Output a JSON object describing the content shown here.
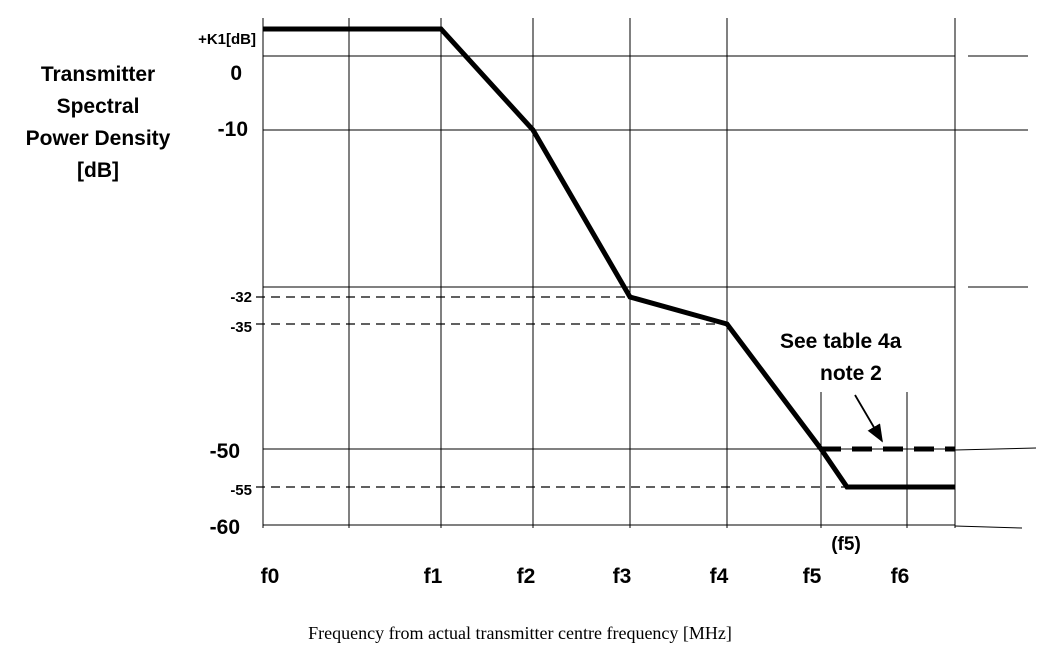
{
  "chart_data": {
    "type": "line",
    "ylabel_lines": [
      "Transmitter",
      "Spectral",
      "Power Density",
      "[dB]"
    ],
    "xlabel": "Frequency from actual transmitter centre frequency [MHz]",
    "x_ticks": [
      {
        "key": "f0",
        "label": "f0"
      },
      {
        "key": "f1",
        "label": "f1"
      },
      {
        "key": "f2",
        "label": "f2"
      },
      {
        "key": "f3",
        "label": "f3"
      },
      {
        "key": "f4",
        "label": "f4"
      },
      {
        "key": "f5",
        "label": "f5"
      },
      {
        "key": "f6",
        "label": "f6"
      }
    ],
    "y_ticks": [
      {
        "value": "K1",
        "label": "+K1[dB]"
      },
      {
        "value": 0,
        "label": "0"
      },
      {
        "value": -10,
        "label": "-10"
      },
      {
        "value": -32,
        "label": "-32"
      },
      {
        "value": -35,
        "label": "-35"
      },
      {
        "value": -50,
        "label": "-50"
      },
      {
        "value": -55,
        "label": "-55"
      },
      {
        "value": -60,
        "label": "-60"
      }
    ],
    "series": [
      {
        "style": "solid",
        "points": [
          {
            "x": "f0",
            "y": "+K1"
          },
          {
            "x": "f1",
            "y": "+K1"
          },
          {
            "x": "f2",
            "y": -10
          },
          {
            "x": "f3",
            "y": -32
          },
          {
            "x": "f4",
            "y": -35
          },
          {
            "x": "f5",
            "y": -50
          },
          {
            "x": "(f5)",
            "y": -55
          },
          {
            "x": "end",
            "y": -55
          }
        ]
      },
      {
        "style": "dashed",
        "points": [
          {
            "x": "f5",
            "y": -50
          },
          {
            "x": "end",
            "y": -50
          }
        ]
      }
    ],
    "annotations": [
      {
        "text_lines": [
          "See table 4a",
          "note 2"
        ]
      },
      {
        "text": "(f5)"
      }
    ],
    "grid": true
  }
}
